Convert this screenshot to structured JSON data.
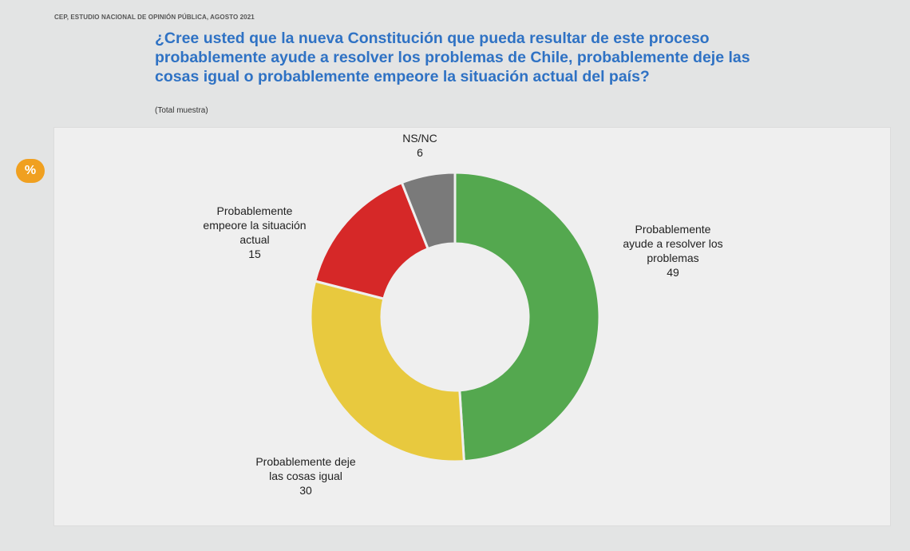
{
  "header": {
    "source": "CEP, ESTUDIO NACIONAL DE OPINIÓN PÚBLICA, AGOSTO 2021",
    "question_lines": [
      "¿Cree usted que la nueva Constitución que pueda resultar de este proceso",
      "probablemente ayude a resolver los problemas de Chile, probablemente deje las",
      "cosas igual o probablemente empeore la situación actual del país?"
    ],
    "subnote": "(Total muestra)",
    "badge": "%"
  },
  "chart_data": {
    "type": "pie",
    "variant": "donut",
    "slices": [
      {
        "label": "Probablemente ayude a resolver los problemas",
        "label_lines": [
          "Probablemente",
          "ayude a resolver los",
          "problemas"
        ],
        "value": 49,
        "color": "#54a84f"
      },
      {
        "label": "Probablemente deje las cosas igual",
        "label_lines": [
          "Probablemente deje",
          "las cosas igual"
        ],
        "value": 30,
        "color": "#e8c93e"
      },
      {
        "label": "Probablemente empeore la situación actual",
        "label_lines": [
          "Probablemente",
          "empeore la situación",
          "actual"
        ],
        "value": 15,
        "color": "#d62828"
      },
      {
        "label": "NS/NC",
        "label_lines": [
          "NS/NC"
        ],
        "value": 6,
        "color": "#7a7a7a"
      }
    ]
  }
}
